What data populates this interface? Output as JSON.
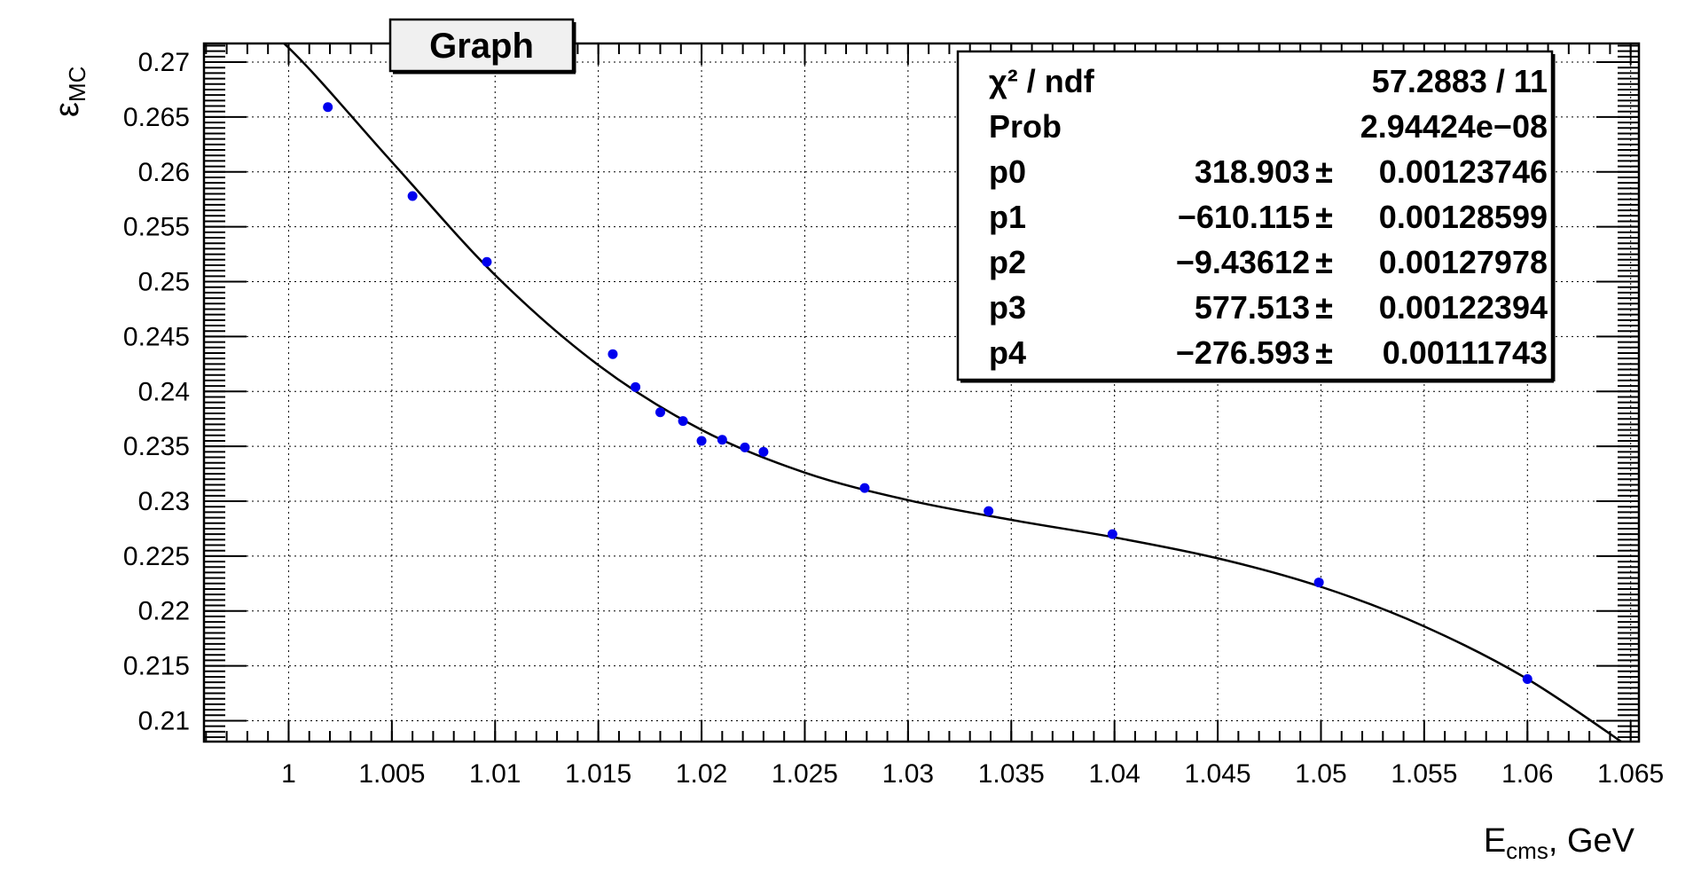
{
  "chart_data": {
    "type": "scatter",
    "title": "Graph",
    "xlabel": {
      "main": "E",
      "sub": "cms",
      "suffix": ", GeV"
    },
    "ylabel": {
      "main": "ε",
      "sub": "MC"
    },
    "xlim": [
      0.9959,
      1.0654
    ],
    "ylim": [
      0.2081,
      0.2717
    ],
    "xticks": [
      1,
      1.005,
      1.01,
      1.015,
      1.02,
      1.025,
      1.03,
      1.035,
      1.04,
      1.045,
      1.05,
      1.055,
      1.06,
      1.065
    ],
    "xtick_labels": [
      "1",
      "1.005",
      "1.01",
      "1.015",
      "1.02",
      "1.025",
      "1.03",
      "1.035",
      "1.04",
      "1.045",
      "1.05",
      "1.055",
      "1.06",
      "1.065"
    ],
    "yticks": [
      0.21,
      0.215,
      0.22,
      0.225,
      0.23,
      0.235,
      0.24,
      0.245,
      0.25,
      0.255,
      0.26,
      0.265,
      0.27
    ],
    "ytick_labels": [
      "0.21",
      "0.215",
      "0.22",
      "0.225",
      "0.23",
      "0.235",
      "0.24",
      "0.245",
      "0.25",
      "0.255",
      "0.26",
      "0.265",
      "0.27"
    ],
    "grid": true,
    "points": {
      "x": [
        1.0019,
        1.006,
        1.0096,
        1.0157,
        1.0168,
        1.018,
        1.0191,
        1.02,
        1.021,
        1.0221,
        1.023,
        1.0279,
        1.0339,
        1.0399,
        1.0499,
        1.06
      ],
      "y": [
        0.2659,
        0.2578,
        0.2518,
        0.2434,
        0.2404,
        0.2381,
        0.2373,
        0.2355,
        0.2356,
        0.2349,
        0.2345,
        0.2312,
        0.2291,
        0.227,
        0.2226,
        0.2138
      ],
      "color": "#0000ee"
    },
    "fit": {
      "function": "pol4",
      "color": "#000000",
      "curve_x": [
        0.9959,
        1.0,
        1.005,
        1.01,
        1.015,
        1.02,
        1.025,
        1.03,
        1.035,
        1.04,
        1.045,
        1.05,
        1.055,
        1.06,
        1.065
      ],
      "curve_y": [
        0.2775,
        0.2713,
        0.2609,
        0.2506,
        0.2424,
        0.2365,
        0.2326,
        0.2301,
        0.2283,
        0.2267,
        0.2248,
        0.2222,
        0.2186,
        0.2138,
        0.2075
      ]
    },
    "stats_box": {
      "placement": "top-right",
      "rows": [
        {
          "label": "χ² / ndf",
          "value": "57.2883 / 11",
          "error": ""
        },
        {
          "label": "Prob",
          "value": "2.94424e−08",
          "error": ""
        },
        {
          "label": "p0",
          "value": "318.903",
          "error": "0.00123746"
        },
        {
          "label": "p1",
          "value": "−610.115",
          "error": "0.00128599"
        },
        {
          "label": "p2",
          "value": "−9.43612",
          "error": "0.00127978"
        },
        {
          "label": "p3",
          "value": "577.513",
          "error": "0.00122394"
        },
        {
          "label": "p4",
          "value": "−276.593",
          "error": "0.00111743"
        }
      ]
    }
  }
}
